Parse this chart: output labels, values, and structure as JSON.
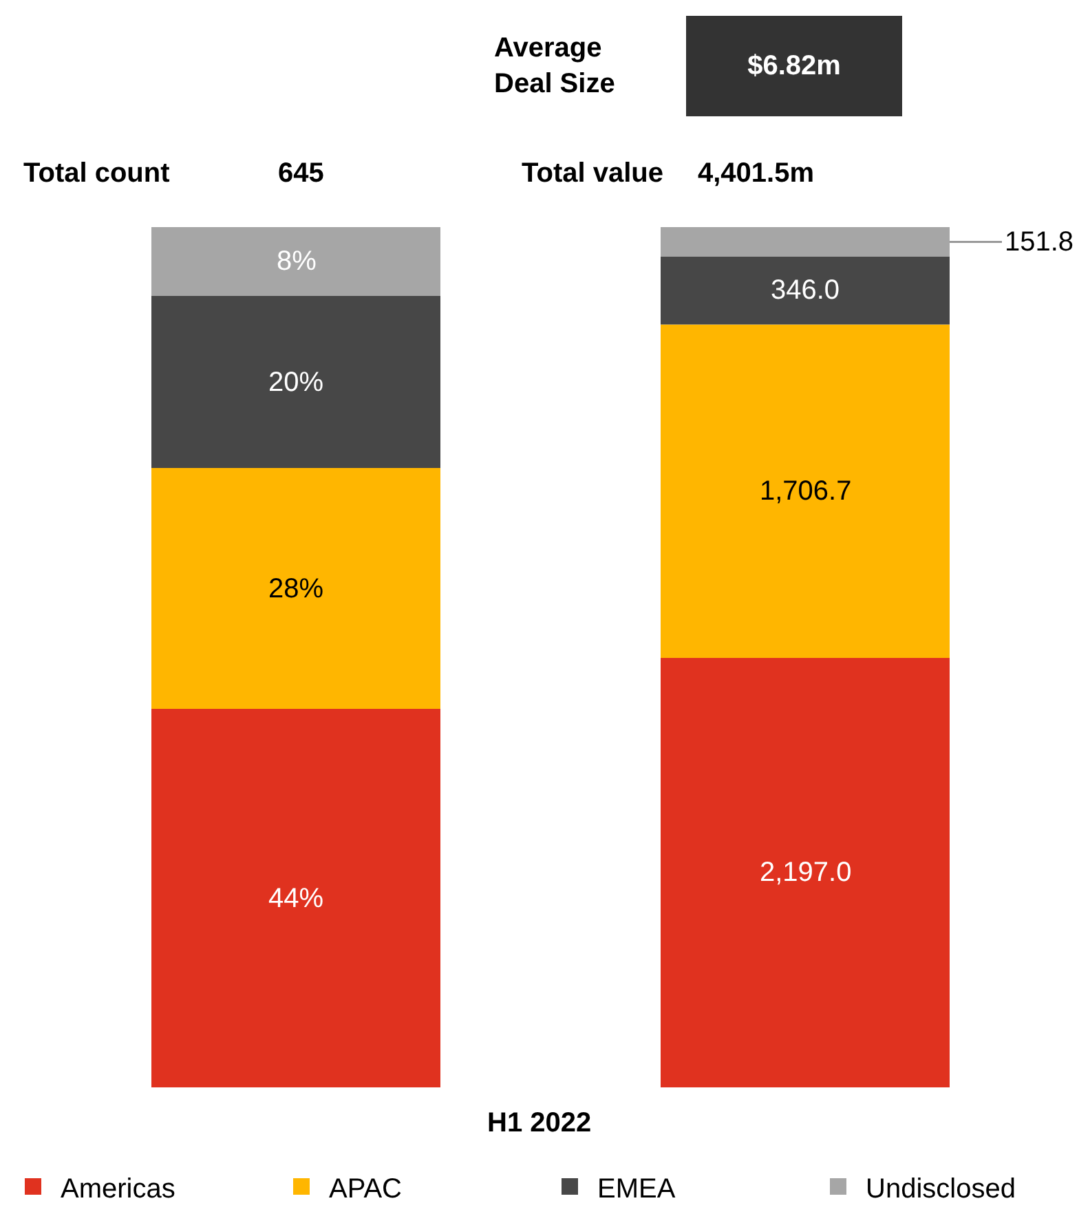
{
  "chart_data": [
    {
      "type": "bar",
      "stacked": true,
      "categories": [
        null
      ],
      "legend": "bottom",
      "annotations": [
        "Total count",
        "645",
        "H1 2022"
      ],
      "series": [
        {
          "name": "Americas",
          "color": "#e0321f",
          "values": [
            44
          ],
          "value_labels": [
            "44%"
          ]
        },
        {
          "name": "APAC",
          "color": "#ffb600",
          "values": [
            28
          ],
          "value_labels": [
            "28%"
          ]
        },
        {
          "name": "EMEA",
          "color": "#474747",
          "values": [
            20
          ],
          "value_labels": [
            "20%"
          ]
        },
        {
          "name": "Undisclosed",
          "color": "#a6a6a6",
          "values": [
            8
          ],
          "value_labels": [
            "8%"
          ]
        }
      ]
    },
    {
      "type": "bar",
      "stacked": true,
      "categories": [
        null
      ],
      "annotations": [
        "Total value",
        "4,401.5m",
        "Average\nDeal Size",
        "$6.82m"
      ],
      "series": [
        {
          "color": "#e0321f",
          "values": [
            2197.0
          ],
          "value_labels": [
            "2,197.0"
          ]
        },
        {
          "color": "#ffb600",
          "values": [
            1706.7
          ],
          "value_labels": [
            "1,706.7"
          ]
        },
        {
          "color": "#474747",
          "values": [
            346.0
          ],
          "value_labels": [
            "346.0"
          ]
        },
        {
          "color": "#a6a6a6",
          "values": [
            151.8
          ],
          "value_labels": [
            "151.8"
          ]
        }
      ]
    }
  ]
}
